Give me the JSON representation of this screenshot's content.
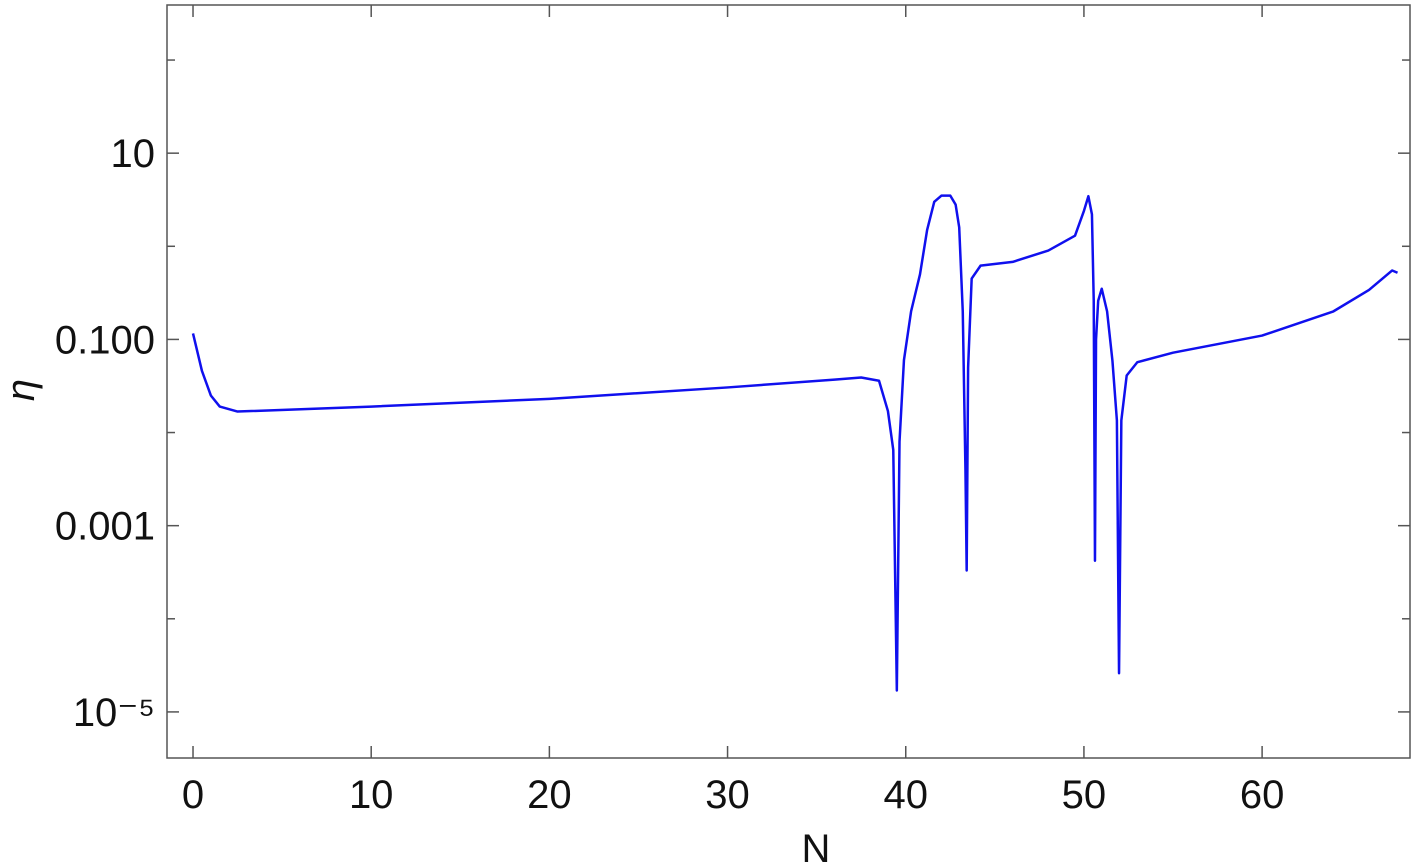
{
  "chart_data": {
    "type": "line",
    "x_label": "N",
    "y_label": "η",
    "log_y": true,
    "xlim": [
      -1.46,
      68.3
    ],
    "ylim": [
      3.2e-06,
      390
    ],
    "xticks": [
      0,
      10,
      20,
      30,
      40,
      50,
      60
    ],
    "yticks": [
      10,
      {
        "value": 0.1,
        "label": "0.100"
      },
      0.001,
      {
        "value": 1e-05,
        "label": "10⁻⁵"
      }
    ],
    "yminorticks": [
      100,
      1,
      0.01,
      0.0001
    ],
    "x": [
      0,
      0.5,
      1,
      1.5,
      2.5,
      10,
      20,
      30,
      36,
      37.5,
      38.5,
      39,
      39.3,
      39.5,
      39.65,
      39.9,
      40.3,
      40.8,
      41.2,
      41.6,
      42,
      42.5,
      42.8,
      43,
      43.2,
      43.35,
      43.42,
      43.5,
      43.7,
      44.2,
      46,
      48,
      49.5,
      50,
      50.25,
      50.45,
      50.55,
      50.62,
      50.68,
      50.8,
      51,
      51.3,
      51.6,
      51.85,
      51.97,
      52.1,
      52.4,
      53,
      55,
      60,
      64,
      66,
      67.3,
      67.6
    ],
    "series": [
      {
        "name": "η",
        "color": "#1010ee",
        "values": [
          0.116,
          0.046,
          0.025,
          0.019,
          0.0168,
          0.019,
          0.023,
          0.0305,
          0.037,
          0.039,
          0.036,
          0.017,
          0.0065,
          1.7e-05,
          0.008,
          0.06,
          0.2,
          0.5,
          1.5,
          3.0,
          3.5,
          3.5,
          2.8,
          1.6,
          0.2,
          0.004,
          0.00033,
          0.05,
          0.45,
          0.62,
          0.68,
          0.9,
          1.3,
          2.4,
          3.45,
          2.2,
          0.26,
          0.00042,
          0.1,
          0.26,
          0.35,
          0.2,
          0.059,
          0.0135,
          2.6e-05,
          0.0135,
          0.041,
          0.057,
          0.072,
          0.11,
          0.2,
          0.34,
          0.55,
          0.52
        ]
      }
    ]
  }
}
